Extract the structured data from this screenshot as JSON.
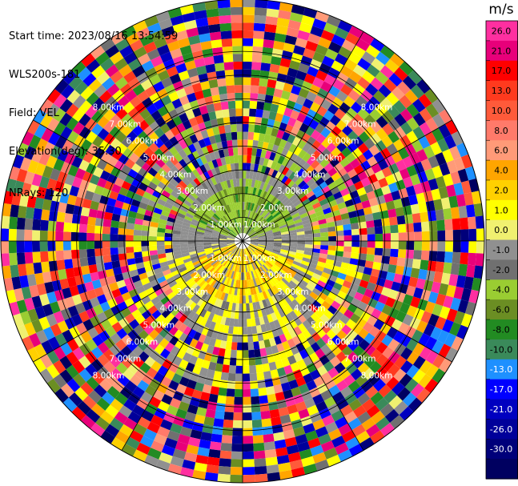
{
  "header": {
    "start_time": "Start time: 2023/08/16 13:54:59",
    "instrument": "WLS200s-181",
    "field": "Field: VEL",
    "elevation": "Elevation(deg): 35.30",
    "nrays": "NRays: 120"
  },
  "chart_data": {
    "type": "heatmap",
    "projection": "polar-ppi",
    "field": "VEL",
    "units": "m/s",
    "n_rays": 120,
    "range_rings_km": [
      1.0,
      2.0,
      3.0,
      4.0,
      5.0,
      6.0,
      7.0,
      8.0
    ],
    "range_ring_labels": [
      "1.00km",
      "2.00km",
      "3.00km",
      "4.00km",
      "5.00km",
      "6.00km",
      "7.00km",
      "8.00km"
    ],
    "max_range_km": 10.2,
    "spokes_deg": [
      0,
      30,
      60,
      90,
      120,
      150,
      180,
      210,
      240,
      270,
      300,
      330
    ],
    "pattern": "Near-field bins (< ~2 km): green/olive (-2 to -6 m/s) to the north, yellow/orange (2 to 10 m/s) to the south; grey (~0 m/s) background in the inner region; far-field bins are noise-dominated with random colours spanning the whole scale.",
    "colorbar": {
      "unit_label": "m/s",
      "ticks": [
        "26.0",
        "21.0",
        "17.0",
        "13.0",
        "10.0",
        "8.0",
        "6.0",
        "4.0",
        "2.0",
        "1.0",
        "0.0",
        "-1.0",
        "-2.0",
        "-4.0",
        "-6.0",
        "-8.0",
        "-10.0",
        "-13.0",
        "-17.0",
        "-21.0",
        "-26.0",
        "-30.0"
      ],
      "colors": [
        "#ff2fa0",
        "#e8007a",
        "#ff0000",
        "#ff3a1e",
        "#ff5a3a",
        "#ff7a6a",
        "#ff9a78",
        "#ffa500",
        "#ffd000",
        "#ffff00",
        "#f0f070",
        "#909090",
        "#707070",
        "#9acd32",
        "#6b8e23",
        "#228b22",
        "#3a8a5a",
        "#1e90ff",
        "#0000ff",
        "#0000c0",
        "#00009a",
        "#00007a",
        "#000060"
      ]
    }
  }
}
